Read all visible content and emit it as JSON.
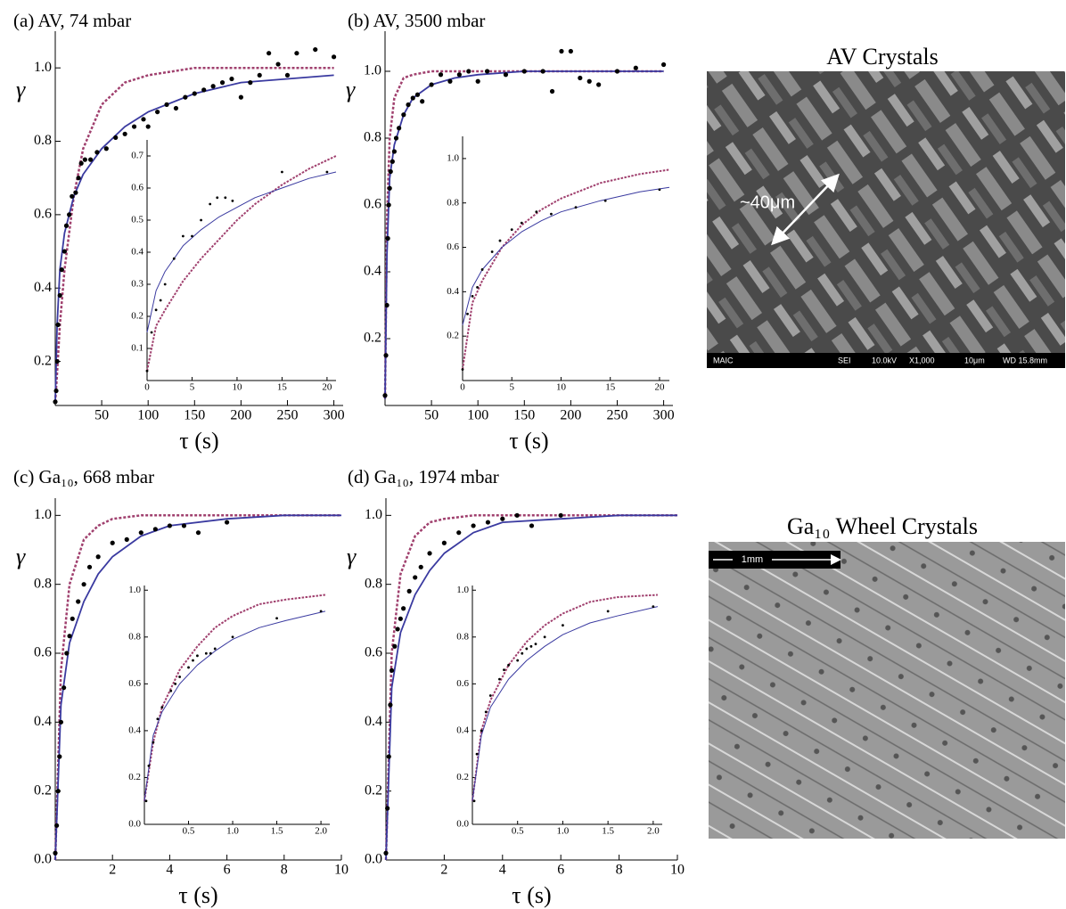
{
  "chart_data": [
    {
      "type": "scatter",
      "title": "(a) AV, 74 mbar",
      "x_label": "τ (s)",
      "y_label": "γ",
      "xlim": [
        0,
        310
      ],
      "ylim": [
        0.08,
        1.1
      ],
      "xticks": [
        50,
        100,
        150,
        200,
        250,
        300
      ],
      "yticks": [
        0.2,
        0.4,
        0.6,
        0.8,
        {
          "value": 1,
          "label": "1.0"
        }
      ],
      "series": [
        {
          "style": "dashed",
          "color": "#a0406e",
          "x": [
            0,
            2,
            5,
            10,
            20,
            30,
            50,
            75,
            100,
            150,
            200,
            250,
            300
          ],
          "values": [
            0.09,
            0.17,
            0.3,
            0.45,
            0.65,
            0.78,
            0.9,
            0.96,
            0.98,
            1.0,
            1.0,
            1.0,
            1.0
          ]
        },
        {
          "style": "line",
          "color": "#3a3aa0",
          "x": [
            0,
            2,
            5,
            10,
            20,
            30,
            50,
            75,
            100,
            150,
            200,
            250,
            300
          ],
          "values": [
            0.09,
            0.3,
            0.45,
            0.55,
            0.65,
            0.71,
            0.78,
            0.84,
            0.88,
            0.93,
            0.96,
            0.97,
            0.98
          ]
        },
        {
          "style": "points",
          "color": "#000000",
          "x": [
            0,
            1,
            2,
            3,
            5,
            7,
            10,
            12,
            15,
            18,
            22,
            25,
            28,
            32,
            38,
            45,
            55,
            65,
            75,
            85,
            95,
            100,
            110,
            120,
            130,
            140,
            150,
            160,
            170,
            180,
            190,
            200,
            210,
            220,
            230,
            240,
            250,
            260,
            280,
            300
          ],
          "values": [
            0.09,
            0.12,
            0.2,
            0.3,
            0.38,
            0.45,
            0.5,
            0.57,
            0.6,
            0.65,
            0.66,
            0.7,
            0.74,
            0.75,
            0.75,
            0.77,
            0.78,
            0.81,
            0.82,
            0.84,
            0.86,
            0.84,
            0.88,
            0.9,
            0.89,
            0.92,
            0.93,
            0.94,
            0.95,
            0.96,
            0.97,
            0.92,
            0.96,
            0.98,
            1.04,
            1.01,
            0.98,
            1.04,
            1.05,
            1.03
          ]
        }
      ]
    },
    {
      "type": "scatter",
      "xlim": [
        0,
        21
      ],
      "ylim": [
        0,
        0.75
      ],
      "xticks": [
        0,
        5,
        10,
        15,
        20
      ],
      "yticks": [
        0.1,
        0.2,
        0.3,
        0.4,
        0.5,
        0.6,
        0.7
      ],
      "series": [
        {
          "style": "dashed",
          "color": "#a0406e",
          "x": [
            0,
            1,
            2,
            4,
            6,
            8,
            10,
            12,
            15,
            18,
            21
          ],
          "values": [
            0.03,
            0.17,
            0.22,
            0.31,
            0.38,
            0.44,
            0.5,
            0.55,
            0.61,
            0.66,
            0.7
          ]
        },
        {
          "style": "line",
          "color": "#3a3aa0",
          "x": [
            0,
            1,
            2,
            4,
            6,
            8,
            10,
            12,
            15,
            18,
            21
          ],
          "values": [
            0.15,
            0.28,
            0.34,
            0.42,
            0.47,
            0.51,
            0.54,
            0.57,
            0.6,
            0.63,
            0.65
          ]
        },
        {
          "style": "points",
          "color": "#000000",
          "x": [
            0,
            0.5,
            1,
            1.5,
            2,
            3,
            4,
            5,
            6,
            7,
            7.8,
            8.7,
            9.5,
            15,
            20
          ],
          "values": [
            0.03,
            0.15,
            0.22,
            0.25,
            0.3,
            0.38,
            0.45,
            0.45,
            0.5,
            0.55,
            0.57,
            0.57,
            0.56,
            0.65,
            0.65
          ]
        }
      ]
    },
    {
      "type": "scatter",
      "title": "(b) AV, 3500 mbar",
      "x_label": "τ (s)",
      "y_label": "γ",
      "xlim": [
        0,
        310
      ],
      "ylim": [
        0,
        1.12
      ],
      "xticks": [
        50,
        100,
        150,
        200,
        250,
        300
      ],
      "yticks": [
        0.2,
        0.4,
        0.6,
        0.8,
        {
          "value": 1,
          "label": "1.0"
        }
      ],
      "series": [
        {
          "style": "dashed",
          "color": "#a0406e",
          "x": [
            0,
            2,
            5,
            10,
            20,
            30,
            50,
            75,
            100,
            150,
            300
          ],
          "values": [
            0.02,
            0.55,
            0.8,
            0.92,
            0.98,
            0.99,
            1.0,
            1.0,
            1.0,
            1.0,
            1.0
          ]
        },
        {
          "style": "line",
          "color": "#3a3aa0",
          "x": [
            0,
            2,
            5,
            10,
            20,
            30,
            50,
            75,
            100,
            150,
            300
          ],
          "values": [
            0.02,
            0.45,
            0.68,
            0.78,
            0.87,
            0.92,
            0.96,
            0.98,
            0.99,
            1.0,
            1.0
          ]
        },
        {
          "style": "points",
          "color": "#000000",
          "x": [
            0,
            1,
            2,
            3,
            4,
            5,
            6,
            8,
            10,
            12,
            15,
            20,
            25,
            30,
            35,
            40,
            50,
            60,
            70,
            80,
            90,
            100,
            110,
            130,
            150,
            170,
            180,
            190,
            200,
            210,
            220,
            230,
            250,
            270,
            300
          ],
          "values": [
            0.03,
            0.15,
            0.3,
            0.5,
            0.6,
            0.65,
            0.7,
            0.73,
            0.76,
            0.8,
            0.83,
            0.87,
            0.9,
            0.92,
            0.93,
            0.91,
            0.96,
            0.99,
            0.97,
            0.99,
            1.0,
            0.97,
            1.0,
            0.99,
            1.0,
            1.0,
            0.94,
            1.06,
            1.06,
            0.98,
            0.97,
            0.96,
            1.0,
            1.01,
            1.02
          ]
        }
      ]
    },
    {
      "type": "scatter",
      "xlim": [
        0,
        21
      ],
      "ylim": [
        0,
        1.1
      ],
      "xticks": [
        0,
        5,
        10,
        15,
        20
      ],
      "yticks": [
        0.2,
        0.4,
        0.6,
        0.8,
        {
          "value": 1,
          "label": "1.0"
        }
      ],
      "series": [
        {
          "style": "dashed",
          "color": "#a0406e",
          "x": [
            0,
            1,
            2,
            4,
            6,
            8,
            10,
            14,
            18,
            21
          ],
          "values": [
            0.05,
            0.35,
            0.45,
            0.6,
            0.7,
            0.77,
            0.82,
            0.89,
            0.93,
            0.95
          ]
        },
        {
          "style": "line",
          "color": "#3a3aa0",
          "x": [
            0,
            1,
            2,
            4,
            6,
            8,
            10,
            14,
            18,
            21
          ],
          "values": [
            0.25,
            0.42,
            0.5,
            0.6,
            0.67,
            0.72,
            0.76,
            0.81,
            0.85,
            0.87
          ]
        },
        {
          "style": "points",
          "color": "#000000",
          "x": [
            0,
            0.5,
            1,
            1.5,
            2,
            3,
            3.8,
            5,
            6,
            7.5,
            9,
            11.5,
            14.5,
            20
          ],
          "values": [
            0.05,
            0.3,
            0.38,
            0.42,
            0.5,
            0.58,
            0.63,
            0.68,
            0.71,
            0.76,
            0.75,
            0.78,
            0.81,
            0.86
          ]
        }
      ]
    },
    {
      "type": "scatter",
      "title": "(c) Ga₁₀, 668 mbar",
      "x_label": "τ (s)",
      "y_label": "γ",
      "xlim": [
        0,
        10
      ],
      "ylim": [
        0,
        1.05
      ],
      "xticks": [
        2,
        4,
        6,
        8,
        10
      ],
      "yticks": [
        {
          "value": 0,
          "label": "0.0"
        },
        0.2,
        0.4,
        0.6,
        0.8,
        {
          "value": 1,
          "label": "1.0"
        }
      ],
      "series": [
        {
          "style": "dashed",
          "color": "#a0406e",
          "x": [
            0,
            0.2,
            0.5,
            1,
            1.5,
            2,
            3,
            4,
            6,
            8,
            10
          ],
          "values": [
            0,
            0.55,
            0.8,
            0.93,
            0.97,
            0.99,
            1.0,
            1.0,
            1.0,
            1.0,
            1.0
          ]
        },
        {
          "style": "line",
          "color": "#3a3aa0",
          "x": [
            0,
            0.2,
            0.5,
            1,
            1.5,
            2,
            3,
            4,
            6,
            8,
            10
          ],
          "values": [
            0,
            0.45,
            0.63,
            0.75,
            0.83,
            0.88,
            0.94,
            0.97,
            0.99,
            1.0,
            1.0
          ]
        },
        {
          "style": "points",
          "color": "#000000",
          "x": [
            0,
            0.05,
            0.1,
            0.15,
            0.2,
            0.3,
            0.4,
            0.5,
            0.6,
            0.8,
            1,
            1.2,
            1.5,
            2,
            2.5,
            3,
            3.5,
            4,
            4.5,
            5,
            6
          ],
          "values": [
            0.02,
            0.1,
            0.2,
            0.3,
            0.4,
            0.5,
            0.6,
            0.65,
            0.7,
            0.75,
            0.8,
            0.85,
            0.88,
            0.92,
            0.93,
            0.95,
            0.96,
            0.97,
            0.97,
            0.95,
            0.98
          ]
        }
      ]
    },
    {
      "type": "scatter",
      "xlim": [
        0,
        2.1
      ],
      "ylim": [
        0,
        1.02
      ],
      "xticks": [
        0.5,
        {
          "value": 1,
          "label": "1.0"
        },
        1.5,
        {
          "value": 2,
          "label": "2.0"
        }
      ],
      "yticks": [
        {
          "value": 0,
          "label": "0.0"
        },
        0.2,
        0.4,
        0.6,
        0.8,
        {
          "value": 1,
          "label": "1.0"
        }
      ],
      "series": [
        {
          "style": "dashed",
          "color": "#a0406e",
          "x": [
            0,
            0.1,
            0.2,
            0.4,
            0.6,
            0.8,
            1,
            1.3,
            1.6,
            2.05
          ],
          "values": [
            0.1,
            0.35,
            0.5,
            0.66,
            0.76,
            0.84,
            0.89,
            0.94,
            0.96,
            0.98
          ]
        },
        {
          "style": "line",
          "color": "#3a3aa0",
          "x": [
            0,
            0.1,
            0.2,
            0.4,
            0.6,
            0.8,
            1,
            1.3,
            1.6,
            2.05
          ],
          "values": [
            0.1,
            0.38,
            0.48,
            0.6,
            0.68,
            0.74,
            0.79,
            0.84,
            0.87,
            0.91
          ]
        },
        {
          "style": "points",
          "color": "#000000",
          "x": [
            0.02,
            0.05,
            0.1,
            0.15,
            0.2,
            0.3,
            0.35,
            0.4,
            0.5,
            0.55,
            0.6,
            0.7,
            0.75,
            0.8,
            1,
            1.5,
            2
          ],
          "values": [
            0.1,
            0.25,
            0.35,
            0.45,
            0.5,
            0.57,
            0.6,
            0.63,
            0.67,
            0.7,
            0.72,
            0.73,
            0.73,
            0.75,
            0.8,
            0.88,
            0.91
          ]
        }
      ]
    },
    {
      "type": "scatter",
      "title": "(d) Ga₁₀, 1974 mbar",
      "x_label": "τ (s)",
      "y_label": "γ",
      "xlim": [
        0,
        10
      ],
      "ylim": [
        0,
        1.05
      ],
      "xticks": [
        2,
        4,
        6,
        8,
        10
      ],
      "yticks": [
        {
          "value": 0,
          "label": "0.0"
        },
        0.2,
        0.4,
        0.6,
        0.8,
        {
          "value": 1,
          "label": "1.0"
        }
      ],
      "series": [
        {
          "style": "dashed",
          "color": "#a0406e",
          "x": [
            0,
            0.2,
            0.5,
            1,
            1.5,
            2,
            3,
            4,
            6,
            8,
            10
          ],
          "values": [
            0,
            0.6,
            0.83,
            0.94,
            0.98,
            0.99,
            1.0,
            1.0,
            1.0,
            1.0,
            1.0
          ]
        },
        {
          "style": "line",
          "color": "#3a3aa0",
          "x": [
            0,
            0.2,
            0.5,
            1,
            1.5,
            2,
            3,
            4,
            6,
            8,
            10
          ],
          "values": [
            0,
            0.5,
            0.66,
            0.77,
            0.84,
            0.89,
            0.95,
            0.98,
            0.99,
            1.0,
            1.0
          ]
        },
        {
          "style": "points",
          "color": "#000000",
          "x": [
            0,
            0.05,
            0.1,
            0.15,
            0.2,
            0.3,
            0.4,
            0.5,
            0.6,
            0.8,
            1,
            1.2,
            1.5,
            2,
            2.5,
            3,
            3.5,
            4,
            4.5,
            5,
            6
          ],
          "values": [
            0.02,
            0.15,
            0.3,
            0.45,
            0.55,
            0.62,
            0.67,
            0.7,
            0.73,
            0.78,
            0.82,
            0.85,
            0.89,
            0.92,
            0.95,
            0.97,
            0.98,
            0.99,
            1.0,
            0.97,
            1.0
          ]
        }
      ]
    },
    {
      "type": "scatter",
      "xlim": [
        0,
        2.1
      ],
      "ylim": [
        0,
        1.02
      ],
      "xticks": [
        0.5,
        {
          "value": 1,
          "label": "1.0"
        },
        1.5,
        {
          "value": 2,
          "label": "2.0"
        }
      ],
      "yticks": [
        {
          "value": 0,
          "label": "0.0"
        },
        0.2,
        0.4,
        0.6,
        0.8,
        {
          "value": 1,
          "label": "1.0"
        }
      ],
      "series": [
        {
          "style": "dashed",
          "color": "#a0406e",
          "x": [
            0,
            0.1,
            0.2,
            0.4,
            0.6,
            0.8,
            1,
            1.3,
            1.6,
            2.05
          ],
          "values": [
            0.1,
            0.4,
            0.53,
            0.68,
            0.78,
            0.85,
            0.9,
            0.95,
            0.97,
            0.98
          ]
        },
        {
          "style": "line",
          "color": "#3a3aa0",
          "x": [
            0,
            0.1,
            0.2,
            0.4,
            0.6,
            0.8,
            1,
            1.3,
            1.6,
            2.05
          ],
          "values": [
            0.1,
            0.38,
            0.5,
            0.62,
            0.7,
            0.76,
            0.81,
            0.86,
            0.89,
            0.93
          ]
        },
        {
          "style": "points",
          "color": "#000000",
          "x": [
            0.02,
            0.05,
            0.1,
            0.15,
            0.2,
            0.3,
            0.35,
            0.4,
            0.5,
            0.55,
            0.6,
            0.65,
            0.7,
            0.8,
            1,
            1.5,
            2
          ],
          "values": [
            0.1,
            0.3,
            0.4,
            0.48,
            0.55,
            0.62,
            0.66,
            0.68,
            0.7,
            0.73,
            0.75,
            0.76,
            0.77,
            0.8,
            0.85,
            0.91,
            0.93
          ]
        }
      ]
    }
  ],
  "images": [
    {
      "title": "AV Crystals",
      "annotation": "~40μm",
      "footer": [
        "MAIC",
        "SEI",
        "10.0kV",
        "X1,000",
        "10μm",
        "WD 15.8mm"
      ]
    },
    {
      "title": "Ga₁₀ Wheel Crystals",
      "annotation": "1mm"
    }
  ]
}
